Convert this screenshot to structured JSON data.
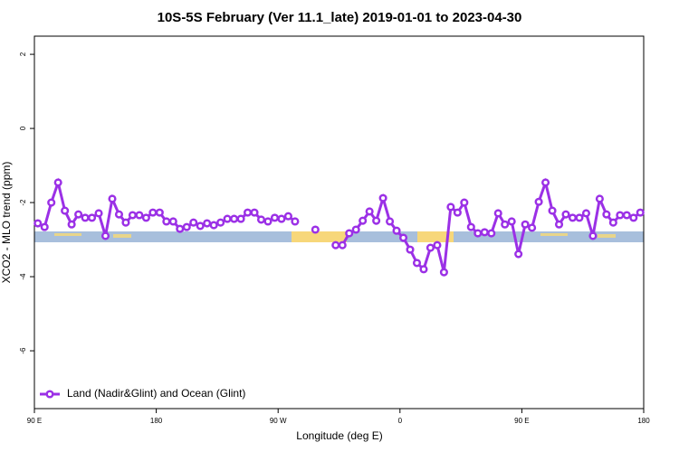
{
  "chart_data": {
    "type": "line",
    "title": "10S-5S February (Ver 11.1_late)   2019-01-01 to 2023-04-30",
    "x_label": "Longitude (deg E)",
    "y_label": "XCO2 - MLO trend (ppm)",
    "x": [
      92.5,
      97.5,
      102.5,
      107.5,
      112.5,
      117.5,
      122.5,
      127.5,
      132.5,
      137.5,
      142.5,
      147.5,
      152.5,
      157.5,
      162.5,
      167.5,
      172.5,
      177.5,
      182.5,
      187.5,
      192.5,
      197.5,
      202.5,
      207.5,
      212.5,
      217.5,
      222.5,
      227.5,
      232.5,
      237.5,
      242.5,
      247.5,
      252.5,
      257.5,
      262.5,
      267.5,
      272.5,
      277.5,
      282.5,
      287.5,
      292.5,
      297.5,
      302.5,
      307.5,
      312.5,
      317.5,
      322.5,
      327.5,
      332.5,
      337.5,
      342.5,
      347.5,
      352.5,
      357.5,
      362.5,
      367.5,
      372.5,
      377.5,
      382.5,
      387.5,
      392.5,
      397.5,
      402.5,
      407.5,
      412.5,
      417.5,
      422.5,
      427.5,
      432.5,
      437.5,
      442.5,
      447.5,
      452.5,
      457.5,
      462.5,
      467.5,
      472.5,
      477.5,
      482.5,
      487.5,
      492.5,
      497.5,
      502.5,
      507.5,
      512.5,
      517.5,
      522.5,
      527.5,
      532.5,
      537.5
    ],
    "series": [
      {
        "name": "Land (Nadir&Glint) and Ocean (Glint)",
        "color": "#9b30e6",
        "values": [
          -2.56,
          -2.66,
          -2.0,
          -1.46,
          -2.22,
          -2.59,
          -2.32,
          -2.41,
          -2.41,
          -2.29,
          -2.9,
          -1.9,
          -2.32,
          -2.54,
          -2.34,
          -2.34,
          -2.41,
          -2.27,
          -2.27,
          -2.51,
          -2.51,
          -2.71,
          -2.66,
          -2.54,
          -2.63,
          -2.56,
          -2.61,
          -2.54,
          -2.44,
          -2.44,
          -2.44,
          -2.27,
          -2.27,
          -2.46,
          -2.51,
          -2.41,
          -2.44,
          -2.37,
          -2.51,
          null,
          null,
          -2.73,
          null,
          null,
          -3.15,
          -3.15,
          -2.83,
          -2.73,
          -2.49,
          -2.24,
          -2.49,
          -1.88,
          -2.51,
          -2.76,
          -2.95,
          -3.27,
          -3.63,
          -3.8,
          -3.22,
          -3.15,
          -3.88,
          -2.12,
          -2.27,
          -2.0,
          -2.66,
          -2.83,
          -2.8,
          -2.83,
          -2.29,
          -2.59,
          -2.51,
          -3.39,
          -2.59,
          -2.68,
          -1.98,
          -1.46,
          -2.22,
          -2.59,
          -2.32,
          -2.41,
          -2.41,
          -2.29,
          -2.9,
          -1.9,
          -2.32,
          -2.54,
          -2.34,
          -2.34,
          -2.41,
          -2.27
        ]
      }
    ],
    "xlim": [
      90,
      540
    ],
    "xticks": [
      {
        "value": 90,
        "label": "90 E"
      },
      180,
      {
        "value": 270,
        "label": "90 W"
      },
      {
        "value": 360,
        "label": "0"
      },
      {
        "value": 450,
        "label": "90 E"
      },
      {
        "value": 540,
        "label": "180"
      }
    ],
    "ylim": [
      -7.56,
      2.49
    ],
    "yticks": [
      -6,
      -4,
      -2,
      0,
      2
    ],
    "legend": "bottom-left"
  }
}
